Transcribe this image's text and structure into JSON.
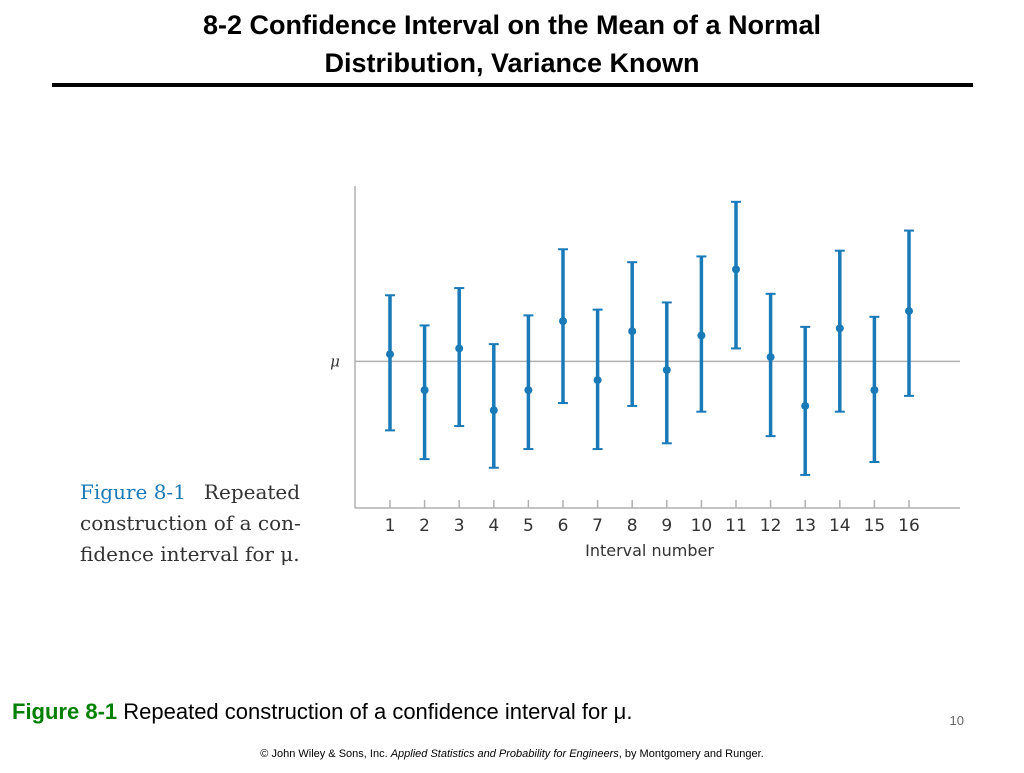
{
  "slide": {
    "title_line1": "8-2 Confidence Interval on the Mean of a Normal",
    "title_line2": "Distribution, Variance Known",
    "page_number": "10"
  },
  "figure_caption": {
    "label": "Figure 8-1",
    "line1": "Repeated",
    "line2": "construction of a con-",
    "line3": "fidence interval for μ."
  },
  "bottom_caption": {
    "label": "Figure 8-1",
    "text": " Repeated construction of a confidence interval for μ."
  },
  "copyright": {
    "prefix": "© John Wiley & Sons, Inc.  ",
    "book": "Applied Statistics and Probability for Engineers",
    "suffix": ", by Montgomery and Runger."
  },
  "chart_data": {
    "type": "scatter",
    "xlabel": "Interval number",
    "ylabel": "",
    "reference_label": "μ",
    "reference_value": 0,
    "categories": [
      "1",
      "2",
      "3",
      "4",
      "5",
      "6",
      "7",
      "8",
      "9",
      "10",
      "11",
      "12",
      "13",
      "14",
      "15",
      "16"
    ],
    "series": [
      {
        "points": [
          0.05,
          -0.2,
          0.09,
          -0.34,
          -0.2,
          0.28,
          -0.13,
          0.21,
          -0.06,
          0.18,
          0.64,
          0.03,
          -0.31,
          0.23,
          -0.2,
          0.35
        ],
        "lower": [
          -0.48,
          -0.68,
          -0.45,
          -0.74,
          -0.61,
          -0.29,
          -0.61,
          -0.31,
          -0.57,
          -0.35,
          0.09,
          -0.52,
          -0.79,
          -0.35,
          -0.7,
          -0.24
        ],
        "upper": [
          0.46,
          0.25,
          0.51,
          0.12,
          0.32,
          0.78,
          0.36,
          0.69,
          0.41,
          0.73,
          1.11,
          0.47,
          0.24,
          0.77,
          0.31,
          0.91
        ]
      }
    ],
    "ylim": [
      -1.02,
      1.22
    ],
    "grid": false,
    "colors": {
      "interval": "#1a7ab8",
      "reference_line": "#b0b0b0",
      "axis": "#b0b0b0",
      "text": "#333333"
    }
  }
}
